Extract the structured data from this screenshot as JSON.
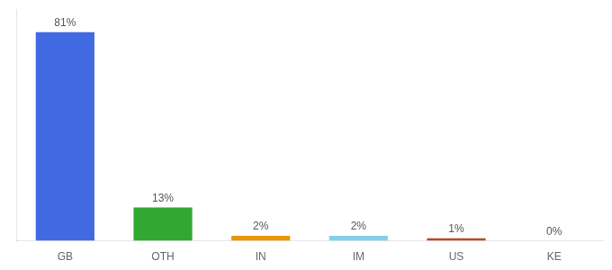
{
  "chart_data": {
    "type": "bar",
    "categories": [
      "GB",
      "OTH",
      "IN",
      "IM",
      "US",
      "KE"
    ],
    "values": [
      81,
      13,
      2,
      2,
      1,
      0
    ],
    "value_labels": [
      "81%",
      "13%",
      "2%",
      "2%",
      "1%",
      "0%"
    ],
    "colors": [
      "#4169e1",
      "#32a832",
      "#e8960a",
      "#87ceeb",
      "#b84a2a",
      "#b84a2a"
    ],
    "ylim": [
      0,
      90
    ],
    "grid": false,
    "tick_labels": "x"
  }
}
